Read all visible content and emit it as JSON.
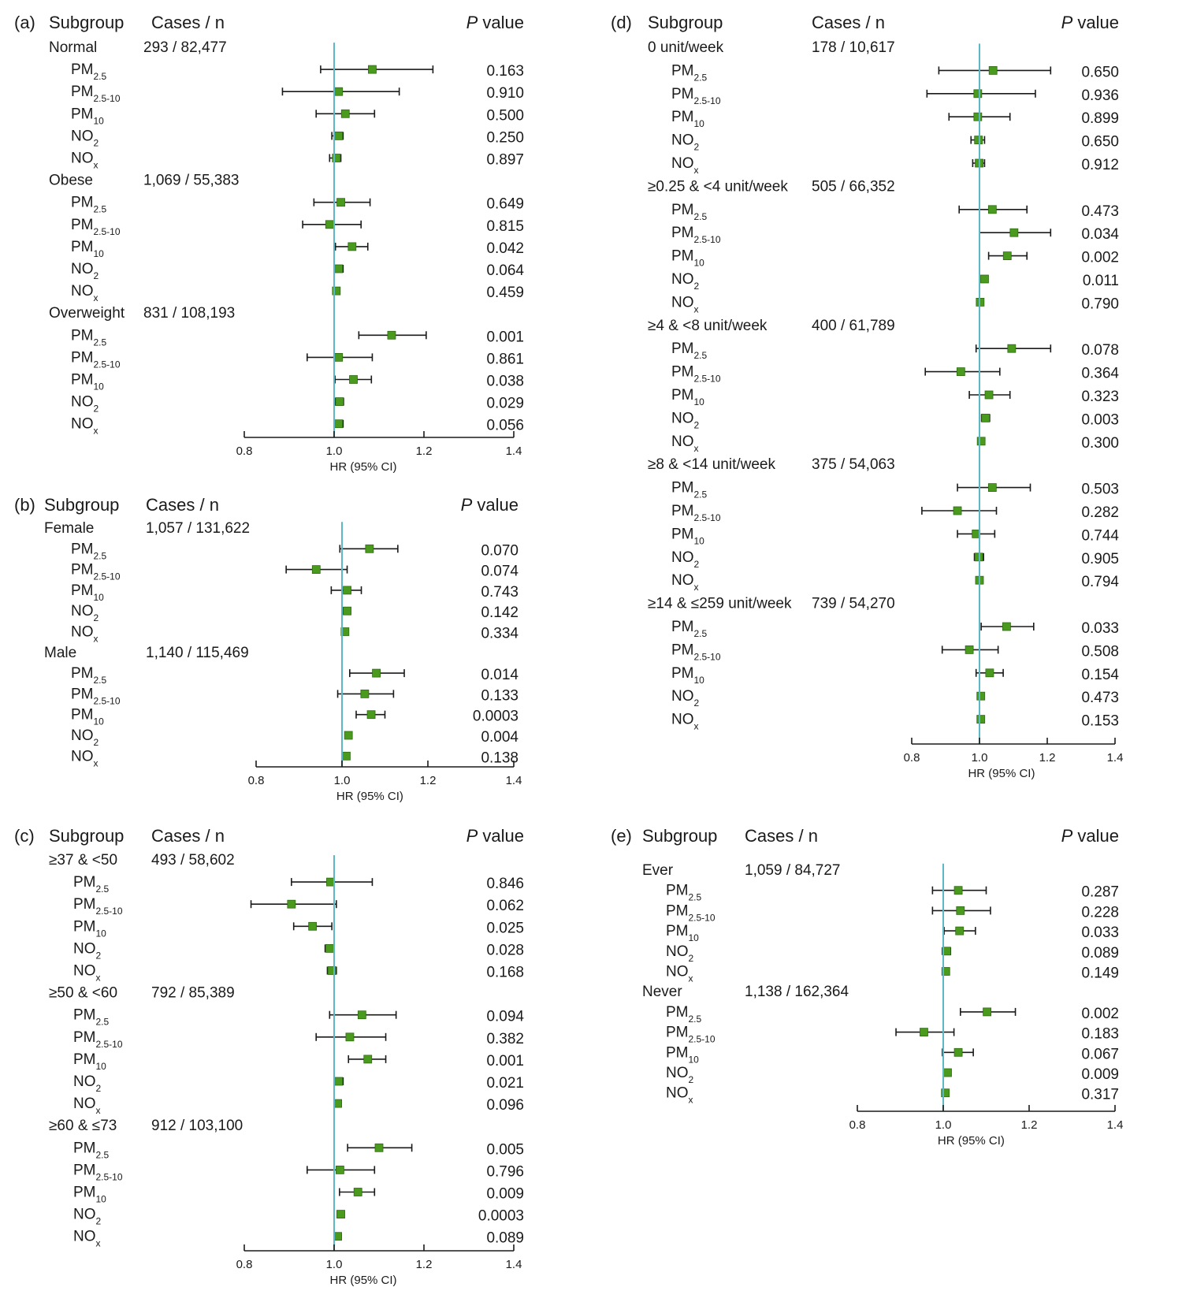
{
  "chart_data": [
    {
      "type": "forest",
      "panel_label": "(a)",
      "headers": {
        "subgroup": "Subgroup",
        "cases": "Cases / n",
        "p_italic": "P",
        "p_rest": " value"
      },
      "xlabel": "HR (95% CI)",
      "xlim": [
        0.8,
        1.4
      ],
      "xticks": [
        0.8,
        1.0,
        1.2,
        1.4
      ],
      "xtick_labels": [
        "0.8",
        "1.0",
        "1.2",
        "1.4"
      ],
      "reference_line": 1.0,
      "groups": [
        {
          "name": "Normal",
          "cases": "293 / 82,477",
          "rows": [
            {
              "pollutant": "PM",
              "sub": "2.5",
              "hr": 1.085,
              "lo": 0.97,
              "hi": 1.22,
              "p": "0.163"
            },
            {
              "pollutant": "PM",
              "sub": "2.5-10",
              "hr": 1.01,
              "lo": 0.885,
              "hi": 1.145,
              "p": "0.910"
            },
            {
              "pollutant": "PM",
              "sub": "10",
              "hr": 1.025,
              "lo": 0.96,
              "hi": 1.09,
              "p": "0.500"
            },
            {
              "pollutant": "NO",
              "sub": "2",
              "hr": 1.01,
              "lo": 0.995,
              "hi": 1.02,
              "p": "0.250"
            },
            {
              "pollutant": "NO",
              "sub": "x",
              "hr": 1.005,
              "lo": 0.99,
              "hi": 1.015,
              "p": "0.897"
            }
          ]
        },
        {
          "name": "Obese",
          "cases": "1,069 / 55,383",
          "rows": [
            {
              "pollutant": "PM",
              "sub": "2.5",
              "hr": 1.015,
              "lo": 0.955,
              "hi": 1.08,
              "p": "0.649"
            },
            {
              "pollutant": "PM",
              "sub": "2.5-10",
              "hr": 0.99,
              "lo": 0.93,
              "hi": 1.06,
              "p": "0.815"
            },
            {
              "pollutant": "PM",
              "sub": "10",
              "hr": 1.04,
              "lo": 1.003,
              "hi": 1.075,
              "p": "0.042"
            },
            {
              "pollutant": "NO",
              "sub": "2",
              "hr": 1.01,
              "lo": 1.0,
              "hi": 1.02,
              "p": "0.064"
            },
            {
              "pollutant": "NO",
              "sub": "x",
              "hr": 1.005,
              "lo": 0.997,
              "hi": 1.012,
              "p": "0.459"
            }
          ]
        },
        {
          "name": "Overweight",
          "cases": "831 / 108,193",
          "rows": [
            {
              "pollutant": "PM",
              "sub": "2.5",
              "hr": 1.128,
              "lo": 1.055,
              "hi": 1.205,
              "p": "0.001"
            },
            {
              "pollutant": "PM",
              "sub": "2.5-10",
              "hr": 1.01,
              "lo": 0.94,
              "hi": 1.085,
              "p": "0.861"
            },
            {
              "pollutant": "PM",
              "sub": "10",
              "hr": 1.043,
              "lo": 1.002,
              "hi": 1.083,
              "p": "0.038"
            },
            {
              "pollutant": "NO",
              "sub": "2",
              "hr": 1.012,
              "lo": 1.002,
              "hi": 1.021,
              "p": "0.029"
            },
            {
              "pollutant": "NO",
              "sub": "x",
              "hr": 1.01,
              "lo": 1.0,
              "hi": 1.02,
              "p": "0.056"
            }
          ]
        }
      ]
    },
    {
      "type": "forest",
      "panel_label": "(b)",
      "headers": {
        "subgroup": "Subgroup",
        "cases": "Cases / n",
        "p_italic": "P",
        "p_rest": " value"
      },
      "xlabel": "HR (95% CI)",
      "xlim": [
        0.8,
        1.4
      ],
      "xticks": [
        0.8,
        1.0,
        1.2,
        1.4
      ],
      "xtick_labels": [
        "0.8",
        "1.0",
        "1.2",
        "1.4"
      ],
      "reference_line": 1.0,
      "groups": [
        {
          "name": "Female",
          "cases": "1,057 / 131,622",
          "rows": [
            {
              "pollutant": "PM",
              "sub": "2.5",
              "hr": 1.064,
              "lo": 0.995,
              "hi": 1.13,
              "p": "0.070"
            },
            {
              "pollutant": "PM",
              "sub": "2.5-10",
              "hr": 0.94,
              "lo": 0.87,
              "hi": 1.012,
              "p": "0.074"
            },
            {
              "pollutant": "PM",
              "sub": "10",
              "hr": 1.012,
              "lo": 0.975,
              "hi": 1.045,
              "p": "0.743"
            },
            {
              "pollutant": "NO",
              "sub": "2",
              "hr": 1.012,
              "lo": 1.003,
              "hi": 1.02,
              "p": "0.142"
            },
            {
              "pollutant": "NO",
              "sub": "x",
              "hr": 1.007,
              "lo": 1.0,
              "hi": 1.013,
              "p": "0.334"
            }
          ]
        },
        {
          "name": "Male",
          "cases": "1,140 / 115,469",
          "rows": [
            {
              "pollutant": "PM",
              "sub": "2.5",
              "hr": 1.08,
              "lo": 1.018,
              "hi": 1.145,
              "p": "0.014"
            },
            {
              "pollutant": "PM",
              "sub": "2.5-10",
              "hr": 1.053,
              "lo": 0.99,
              "hi": 1.12,
              "p": "0.133"
            },
            {
              "pollutant": "PM",
              "sub": "10",
              "hr": 1.068,
              "lo": 1.033,
              "hi": 1.1,
              "p": "0.0003"
            },
            {
              "pollutant": "NO",
              "sub": "2",
              "hr": 1.015,
              "lo": 1.007,
              "hi": 1.022,
              "p": "0.004"
            },
            {
              "pollutant": "NO",
              "sub": "x",
              "hr": 1.01,
              "lo": 1.002,
              "hi": 1.017,
              "p": "0.138"
            }
          ]
        }
      ]
    },
    {
      "type": "forest",
      "panel_label": "(c)",
      "headers": {
        "subgroup": "Subgroup",
        "cases": "Cases / n",
        "p_italic": "P",
        "p_rest": " value"
      },
      "xlabel": "HR (95% CI)",
      "xlim": [
        0.8,
        1.4
      ],
      "xticks": [
        0.8,
        1.0,
        1.2,
        1.4
      ],
      "xtick_labels": [
        "0.8",
        "1.0",
        "1.2",
        "1.4"
      ],
      "reference_line": 1.0,
      "groups": [
        {
          "name": "≥37 & <50",
          "cases": "493 / 58,602",
          "rows": [
            {
              "pollutant": "PM",
              "sub": "2.5",
              "hr": 0.992,
              "lo": 0.905,
              "hi": 1.085,
              "p": "0.846"
            },
            {
              "pollutant": "PM",
              "sub": "2.5-10",
              "hr": 0.905,
              "lo": 0.815,
              "hi": 1.005,
              "p": "0.062"
            },
            {
              "pollutant": "PM",
              "sub": "10",
              "hr": 0.952,
              "lo": 0.91,
              "hi": 0.995,
              "p": "0.025"
            },
            {
              "pollutant": "NO",
              "sub": "2",
              "hr": 0.99,
              "lo": 0.98,
              "hi": 0.998,
              "p": "0.028"
            },
            {
              "pollutant": "NO",
              "sub": "x",
              "hr": 0.995,
              "lo": 0.985,
              "hi": 1.005,
              "p": "0.168"
            }
          ]
        },
        {
          "name": "≥50 & <60",
          "cases": "792 / 85,389",
          "rows": [
            {
              "pollutant": "PM",
              "sub": "2.5",
              "hr": 1.062,
              "lo": 0.99,
              "hi": 1.138,
              "p": "0.094"
            },
            {
              "pollutant": "PM",
              "sub": "2.5-10",
              "hr": 1.035,
              "lo": 0.96,
              "hi": 1.115,
              "p": "0.382"
            },
            {
              "pollutant": "PM",
              "sub": "10",
              "hr": 1.075,
              "lo": 1.032,
              "hi": 1.115,
              "p": "0.001"
            },
            {
              "pollutant": "NO",
              "sub": "2",
              "hr": 1.01,
              "lo": 1.002,
              "hi": 1.02,
              "p": "0.021"
            },
            {
              "pollutant": "NO",
              "sub": "x",
              "hr": 1.008,
              "lo": 1.0,
              "hi": 1.016,
              "p": "0.096"
            }
          ]
        },
        {
          "name": "≥60 & ≤73",
          "cases": "912 / 103,100",
          "rows": [
            {
              "pollutant": "PM",
              "sub": "2.5",
              "hr": 1.1,
              "lo": 1.03,
              "hi": 1.173,
              "p": "0.005"
            },
            {
              "pollutant": "PM",
              "sub": "2.5-10",
              "hr": 1.013,
              "lo": 0.94,
              "hi": 1.09,
              "p": "0.796"
            },
            {
              "pollutant": "PM",
              "sub": "10",
              "hr": 1.053,
              "lo": 1.012,
              "hi": 1.09,
              "p": "0.009"
            },
            {
              "pollutant": "NO",
              "sub": "2",
              "hr": 1.015,
              "lo": 1.007,
              "hi": 1.022,
              "p": "0.0003"
            },
            {
              "pollutant": "NO",
              "sub": "x",
              "hr": 1.008,
              "lo": 1.0,
              "hi": 1.016,
              "p": "0.089"
            }
          ]
        }
      ]
    },
    {
      "type": "forest",
      "panel_label": "(d)",
      "headers": {
        "subgroup": "Subgroup",
        "cases": "Cases / n",
        "p_italic": "P",
        "p_rest": " value"
      },
      "xlabel": "HR (95% CI)",
      "xlim": [
        0.8,
        1.4
      ],
      "xticks": [
        0.8,
        1.0,
        1.2,
        1.4
      ],
      "xtick_labels": [
        "0.8",
        "1.0",
        "1.2",
        "1.4"
      ],
      "reference_line": 1.0,
      "groups": [
        {
          "name": "0 unit/week",
          "cases": "178 / 10,617",
          "rows": [
            {
              "pollutant": "PM",
              "sub": "2.5",
              "hr": 1.04,
              "lo": 0.88,
              "hi": 1.21,
              "p": "0.650"
            },
            {
              "pollutant": "PM",
              "sub": "2.5-10",
              "hr": 0.995,
              "lo": 0.845,
              "hi": 1.165,
              "p": "0.936"
            },
            {
              "pollutant": "PM",
              "sub": "10",
              "hr": 0.995,
              "lo": 0.91,
              "hi": 1.09,
              "p": "0.899"
            },
            {
              "pollutant": "NO",
              "sub": "2",
              "hr": 0.997,
              "lo": 0.975,
              "hi": 1.015,
              "p": "0.650"
            },
            {
              "pollutant": "NO",
              "sub": "x",
              "hr": 0.999,
              "lo": 0.98,
              "hi": 1.015,
              "p": "0.912"
            }
          ]
        },
        {
          "name": "≥0.25 & <4 unit/week",
          "cases": "505 / 66,352",
          "rows": [
            {
              "pollutant": "PM",
              "sub": "2.5",
              "hr": 1.038,
              "lo": 0.94,
              "hi": 1.14,
              "p": "0.473"
            },
            {
              "pollutant": "PM",
              "sub": "2.5-10",
              "hr": 1.102,
              "lo": 1.0,
              "hi": 1.21,
              "p": "0.034"
            },
            {
              "pollutant": "PM",
              "sub": "10",
              "hr": 1.082,
              "lo": 1.027,
              "hi": 1.14,
              "p": "0.002"
            },
            {
              "pollutant": "NO",
              "sub": "2",
              "hr": 1.015,
              "lo": 1.005,
              "hi": 1.025,
              "p": "0.011"
            },
            {
              "pollutant": "NO",
              "sub": "x",
              "hr": 1.002,
              "lo": 0.994,
              "hi": 1.01,
              "p": "0.790"
            }
          ]
        },
        {
          "name": "≥4 & <8 unit/week",
          "cases": "400 / 61,789",
          "rows": [
            {
              "pollutant": "PM",
              "sub": "2.5",
              "hr": 1.095,
              "lo": 0.99,
              "hi": 1.21,
              "p": "0.078"
            },
            {
              "pollutant": "PM",
              "sub": "2.5-10",
              "hr": 0.945,
              "lo": 0.84,
              "hi": 1.06,
              "p": "0.364"
            },
            {
              "pollutant": "PM",
              "sub": "10",
              "hr": 1.028,
              "lo": 0.97,
              "hi": 1.09,
              "p": "0.323"
            },
            {
              "pollutant": "NO",
              "sub": "2",
              "hr": 1.018,
              "lo": 1.006,
              "hi": 1.03,
              "p": "0.003"
            },
            {
              "pollutant": "NO",
              "sub": "x",
              "hr": 1.005,
              "lo": 0.995,
              "hi": 1.015,
              "p": "0.300"
            }
          ]
        },
        {
          "name": "≥8 & <14 unit/week",
          "cases": "375 / 54,063",
          "rows": [
            {
              "pollutant": "PM",
              "sub": "2.5",
              "hr": 1.038,
              "lo": 0.935,
              "hi": 1.15,
              "p": "0.503"
            },
            {
              "pollutant": "PM",
              "sub": "2.5-10",
              "hr": 0.935,
              "lo": 0.83,
              "hi": 1.05,
              "p": "0.282"
            },
            {
              "pollutant": "PM",
              "sub": "10",
              "hr": 0.99,
              "lo": 0.935,
              "hi": 1.045,
              "p": "0.744"
            },
            {
              "pollutant": "NO",
              "sub": "2",
              "hr": 0.998,
              "lo": 0.985,
              "hi": 1.012,
              "p": "0.905"
            },
            {
              "pollutant": "NO",
              "sub": "x",
              "hr": 1.0,
              "lo": 0.99,
              "hi": 1.01,
              "p": "0.794"
            }
          ]
        },
        {
          "name": "≥14 & ≤259 unit/week",
          "cases": "739 / 54,270",
          "rows": [
            {
              "pollutant": "PM",
              "sub": "2.5",
              "hr": 1.08,
              "lo": 1.005,
              "hi": 1.16,
              "p": "0.033"
            },
            {
              "pollutant": "PM",
              "sub": "2.5-10",
              "hr": 0.97,
              "lo": 0.89,
              "hi": 1.055,
              "p": "0.508"
            },
            {
              "pollutant": "PM",
              "sub": "10",
              "hr": 1.03,
              "lo": 0.99,
              "hi": 1.07,
              "p": "0.154"
            },
            {
              "pollutant": "NO",
              "sub": "2",
              "hr": 1.004,
              "lo": 0.995,
              "hi": 1.013,
              "p": "0.473"
            },
            {
              "pollutant": "NO",
              "sub": "x",
              "hr": 1.004,
              "lo": 0.996,
              "hi": 1.012,
              "p": "0.153"
            }
          ]
        }
      ]
    },
    {
      "type": "forest",
      "panel_label": "(e)",
      "headers": {
        "subgroup": "Subgroup",
        "cases": "Cases / n",
        "p_italic": "P",
        "p_rest": " value"
      },
      "xlabel": "HR (95% CI)",
      "xlim": [
        0.8,
        1.4
      ],
      "xticks": [
        0.8,
        1.0,
        1.2,
        1.4
      ],
      "xtick_labels": [
        "0.8",
        "1.0",
        "1.2",
        "1.4"
      ],
      "reference_line": 1.0,
      "groups": [
        {
          "name": "Ever",
          "cases": "1,059 / 84,727",
          "rows": [
            {
              "pollutant": "PM",
              "sub": "2.5",
              "hr": 1.035,
              "lo": 0.975,
              "hi": 1.1,
              "p": "0.287"
            },
            {
              "pollutant": "PM",
              "sub": "2.5-10",
              "hr": 1.04,
              "lo": 0.975,
              "hi": 1.11,
              "p": "0.228"
            },
            {
              "pollutant": "PM",
              "sub": "10",
              "hr": 1.038,
              "lo": 1.002,
              "hi": 1.075,
              "p": "0.033"
            },
            {
              "pollutant": "NO",
              "sub": "2",
              "hr": 1.008,
              "lo": 0.998,
              "hi": 1.017,
              "p": "0.089"
            },
            {
              "pollutant": "NO",
              "sub": "x",
              "hr": 1.006,
              "lo": 0.998,
              "hi": 1.014,
              "p": "0.149"
            }
          ]
        },
        {
          "name": "Never",
          "cases": "1,138 / 162,364",
          "rows": [
            {
              "pollutant": "PM",
              "sub": "2.5",
              "hr": 1.102,
              "lo": 1.04,
              "hi": 1.168,
              "p": "0.002"
            },
            {
              "pollutant": "PM",
              "sub": "2.5-10",
              "hr": 0.955,
              "lo": 0.89,
              "hi": 1.025,
              "p": "0.183"
            },
            {
              "pollutant": "PM",
              "sub": "10",
              "hr": 1.035,
              "lo": 0.998,
              "hi": 1.07,
              "p": "0.067"
            },
            {
              "pollutant": "NO",
              "sub": "2",
              "hr": 1.01,
              "lo": 1.002,
              "hi": 1.018,
              "p": "0.009"
            },
            {
              "pollutant": "NO",
              "sub": "x",
              "hr": 1.005,
              "lo": 0.997,
              "hi": 1.012,
              "p": "0.317"
            }
          ]
        }
      ]
    }
  ],
  "style": {
    "marker_color": "#4a9a1e",
    "marker_edge": "#2e6b12",
    "ci_color": "#1a1a1a",
    "reference_color": "#5bb8c4",
    "text_color": "#1a1a1a"
  }
}
